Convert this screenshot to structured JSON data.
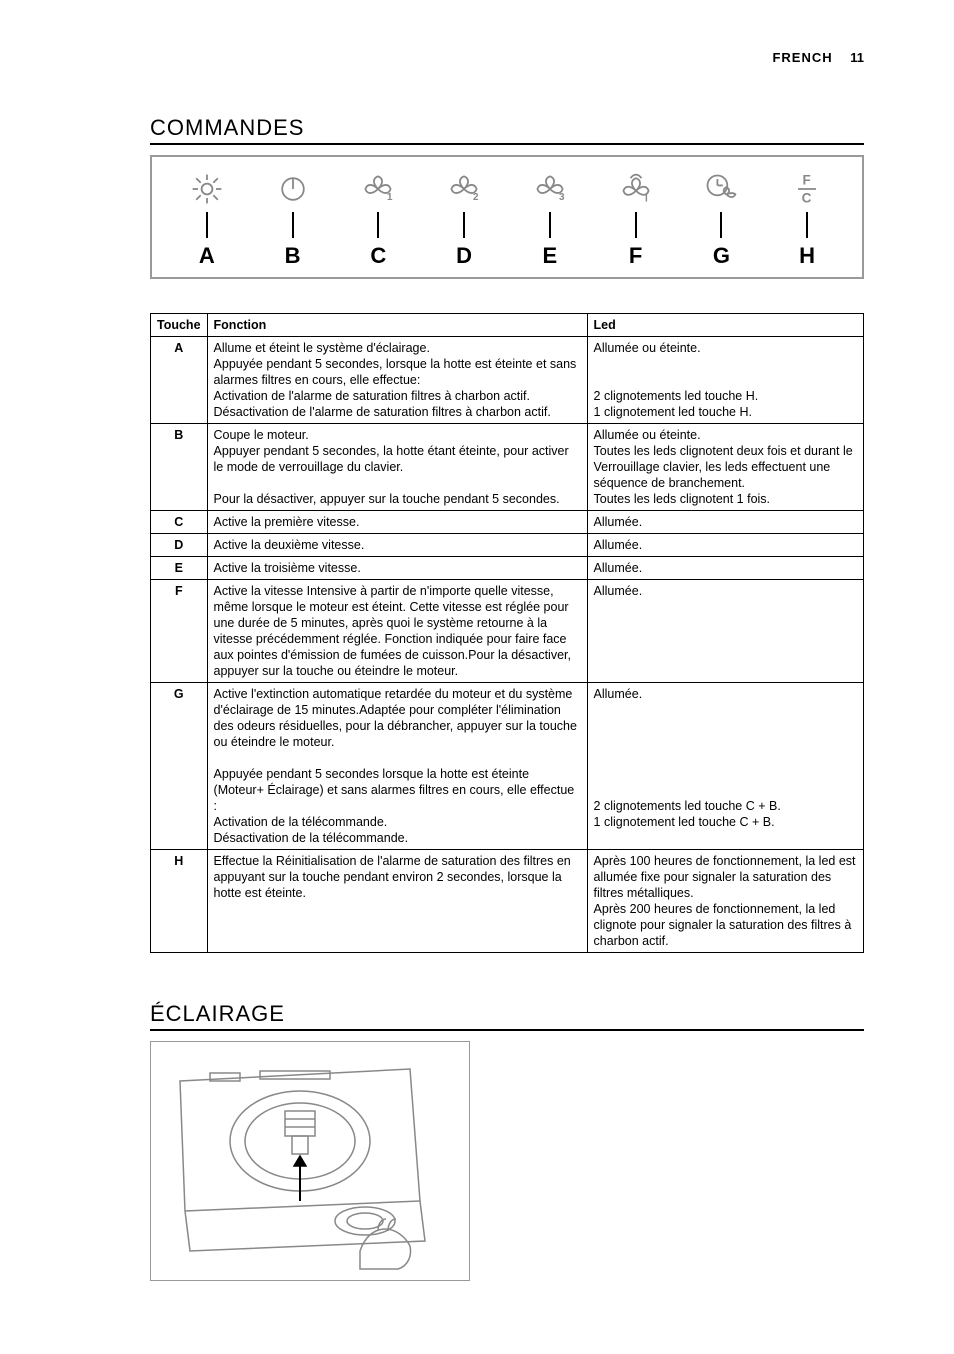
{
  "header": {
    "language": "FRENCH",
    "page_number": "11"
  },
  "sections": {
    "commandes_title": "COMMANDES",
    "eclairage_title": "ÉCLAIRAGE"
  },
  "control_labels": [
    "A",
    "B",
    "C",
    "D",
    "E",
    "F",
    "G",
    "H"
  ],
  "control_icons": [
    "light",
    "power",
    "fan1",
    "fan2",
    "fan3",
    "fan-intensive",
    "timer",
    "fc"
  ],
  "table": {
    "headers": {
      "touche": "Touche",
      "fonction": "Fonction",
      "led": "Led"
    },
    "rows": [
      {
        "key": "A",
        "fonction": "Allume et éteint le système d'éclairage.\nAppuyée pendant 5 secondes, lorsque la hotte est éteinte et sans alarmes filtres en cours, elle effectue:\nActivation de l'alarme de saturation filtres à charbon actif.\nDésactivation de l'alarme de saturation filtres à charbon actif.",
        "led": "Allumée ou éteinte.\n\n\n2 clignotements led touche H.\n1 clignotement led touche H."
      },
      {
        "key": "B",
        "fonction": "Coupe le moteur.\nAppuyer pendant 5 secondes, la hotte étant éteinte, pour activer le mode de verrouillage du clavier.\n\nPour la désactiver, appuyer sur la touche pendant 5 secondes.",
        "led": "Allumée ou éteinte.\nToutes les leds clignotent deux fois et durant le Verrouillage clavier, les leds effectuent une séquence de branchement.\nToutes les leds clignotent 1 fois."
      },
      {
        "key": "C",
        "fonction": "Active la première vitesse.",
        "led": "Allumée."
      },
      {
        "key": "D",
        "fonction": "Active la deuxième vitesse.",
        "led": "Allumée."
      },
      {
        "key": "E",
        "fonction": "Active la troisième vitesse.",
        "led": "Allumée."
      },
      {
        "key": "F",
        "fonction": "Active la vitesse Intensive à partir de n'importe quelle vitesse, même lorsque le moteur est éteint. Cette vitesse est réglée pour une durée de 5 minutes, après quoi le système retourne à la vitesse précédemment réglée. Fonction indiquée pour faire face aux pointes d'émission de fumées de cuisson.Pour la désactiver, appuyer sur la touche ou éteindre le moteur.",
        "led": "Allumée."
      },
      {
        "key": "G",
        "fonction": "Active l'extinction automatique retardée du moteur et du système d'éclairage de 15 minutes.Adaptée pour compléter l'élimination des odeurs résiduelles, pour la débrancher, appuyer sur la touche ou éteindre le moteur.\n\nAppuyée pendant 5 secondes lorsque la hotte est éteinte (Moteur+ Éclairage) et sans alarmes filtres en cours, elle effectue :\nActivation de la télécommande.\nDésactivation de la télécommande.",
        "led": "Allumée.\n\n\n\n\n\n\n2 clignotements led touche C + B.\n1 clignotement led touche C + B."
      },
      {
        "key": "H",
        "fonction": "Effectue la Réinitialisation de l'alarme de saturation des filtres en appuyant sur la touche pendant environ 2 secondes, lorsque la hotte est éteinte.",
        "led": "Après 100 heures de fonctionnement, la led est allumée fixe pour signaler la saturation des filtres métalliques.\nAprès 200 heures de fonctionnement, la led clignote pour signaler la saturation des filtres à charbon actif."
      }
    ]
  },
  "colors": {
    "icon_stroke": "#888888",
    "border": "#000000",
    "box_border": "#999999"
  }
}
